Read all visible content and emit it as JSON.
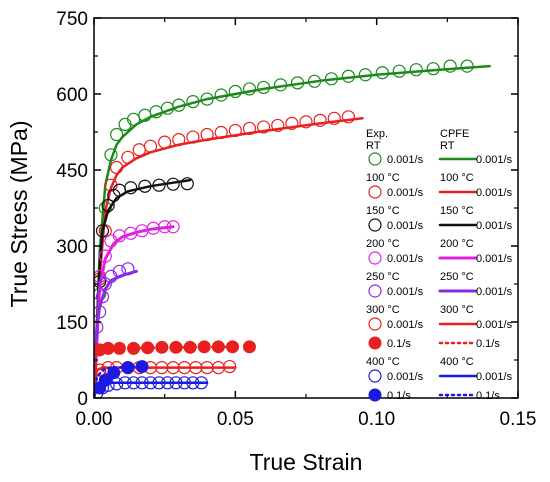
{
  "chart_data": {
    "type": "line",
    "xlabel": "True Strain",
    "ylabel": "True Stress (MPa)",
    "xlim": [
      0,
      0.15
    ],
    "ylim": [
      0,
      750
    ],
    "x_ticks": [
      "0.00",
      "0.05",
      "0.10",
      "0.15"
    ],
    "y_ticks": [
      "0",
      "150",
      "300",
      "450",
      "600",
      "750"
    ],
    "grid": false,
    "legend_position": "right",
    "legend": {
      "header_exp": "Exp.",
      "header_exp_sub": "RT",
      "header_cpfe": "CPFE",
      "header_cpfe_sub": "RT",
      "entries": [
        {
          "group": "",
          "exp_rate": "0.001/s",
          "cpfe_rate": "0.001/s",
          "color": "#1a8a1a",
          "marker": "open",
          "line": "solid",
          "width": 2.5
        },
        {
          "group": "100 °C",
          "exp_rate": "0.001/s",
          "cpfe_rate": "0.001/s",
          "color": "#e82020",
          "marker": "open",
          "line": "solid",
          "width": 2.5
        },
        {
          "group": "150 °C",
          "exp_rate": "0.001/s",
          "cpfe_rate": "0.001/s",
          "color": "#111111",
          "marker": "open",
          "line": "solid",
          "width": 2.5
        },
        {
          "group": "200 °C",
          "exp_rate": "0.001/s",
          "cpfe_rate": "0.001/s",
          "color": "#e020e0",
          "marker": "open",
          "line": "solid",
          "width": 3
        },
        {
          "group": "250 °C",
          "exp_rate": "0.001/s",
          "cpfe_rate": "0.001/s",
          "color": "#8a2be2",
          "marker": "open",
          "line": "solid",
          "width": 3
        },
        {
          "group": "300 °C",
          "exp_rate": "0.001/s",
          "cpfe_rate": "0.001/s",
          "color": "#e82020",
          "marker": "open",
          "line": "solid",
          "width": 2.5
        },
        {
          "group": "",
          "exp_rate": "0.1/s",
          "cpfe_rate": "0.1/s",
          "color": "#e82020",
          "marker": "filled",
          "line": "dotted",
          "width": 2.5
        },
        {
          "group": "400 °C",
          "exp_rate": "0.001/s",
          "cpfe_rate": "0.001/s",
          "color": "#1a1ae0",
          "marker": "open",
          "line": "solid",
          "width": 2.5
        },
        {
          "group": "",
          "exp_rate": "0.1/s",
          "cpfe_rate": "0.1/s",
          "color": "#1a1ae0",
          "marker": "filled",
          "line": "dotted",
          "width": 2.5
        }
      ]
    },
    "series": [
      {
        "color": "#1a8a1a",
        "marker": "open",
        "exp_x": [
          0.002,
          0.004,
          0.006,
          0.008,
          0.011,
          0.014,
          0.018,
          0.022,
          0.026,
          0.03,
          0.035,
          0.04,
          0.045,
          0.05,
          0.055,
          0.06,
          0.066,
          0.072,
          0.078,
          0.084,
          0.09,
          0.096,
          0.102,
          0.108,
          0.114,
          0.12,
          0.126,
          0.132
        ],
        "exp_y": [
          205,
          375,
          480,
          520,
          540,
          550,
          558,
          565,
          572,
          578,
          585,
          590,
          598,
          605,
          610,
          613,
          618,
          622,
          625,
          630,
          635,
          638,
          642,
          645,
          648,
          650,
          655,
          655
        ],
        "model_x": [
          0,
          0.002,
          0.004,
          0.006,
          0.008,
          0.01,
          0.015,
          0.02,
          0.03,
          0.04,
          0.06,
          0.08,
          0.1,
          0.12,
          0.14
        ],
        "model_y": [
          0,
          290,
          420,
          470,
          500,
          515,
          540,
          555,
          575,
          590,
          610,
          626,
          638,
          647,
          655
        ]
      },
      {
        "color": "#e82020",
        "marker": "open",
        "exp_x": [
          0.002,
          0.004,
          0.006,
          0.008,
          0.012,
          0.016,
          0.02,
          0.025,
          0.03,
          0.035,
          0.04,
          0.045,
          0.05,
          0.055,
          0.06,
          0.065,
          0.07,
          0.075,
          0.08,
          0.085,
          0.09
        ],
        "exp_y": [
          235,
          330,
          420,
          455,
          475,
          490,
          497,
          505,
          510,
          515,
          520,
          524,
          528,
          532,
          535,
          538,
          542,
          545,
          548,
          552,
          555
        ],
        "model_x": [
          0,
          0.002,
          0.004,
          0.006,
          0.008,
          0.01,
          0.015,
          0.02,
          0.03,
          0.04,
          0.06,
          0.08,
          0.095
        ],
        "model_y": [
          0,
          240,
          370,
          415,
          440,
          455,
          473,
          485,
          500,
          510,
          527,
          542,
          552
        ]
      },
      {
        "color": "#111111",
        "marker": "open",
        "exp_x": [
          0.002,
          0.003,
          0.005,
          0.007,
          0.009,
          0.013,
          0.018,
          0.023,
          0.028,
          0.033
        ],
        "exp_y": [
          230,
          330,
          380,
          400,
          410,
          415,
          418,
          420,
          422,
          423
        ],
        "model_x": [
          0,
          0.002,
          0.003,
          0.005,
          0.008,
          0.012,
          0.02,
          0.028,
          0.034
        ],
        "model_y": [
          0,
          260,
          330,
          370,
          395,
          408,
          418,
          425,
          430
        ]
      },
      {
        "color": "#e020e0",
        "marker": "open",
        "exp_x": [
          0.002,
          0.004,
          0.006,
          0.009,
          0.013,
          0.017,
          0.021,
          0.025,
          0.028
        ],
        "exp_y": [
          240,
          280,
          310,
          320,
          325,
          330,
          335,
          338,
          338
        ],
        "model_x": [
          0,
          0.002,
          0.004,
          0.007,
          0.01,
          0.015,
          0.02,
          0.028
        ],
        "model_y": [
          0,
          220,
          275,
          305,
          318,
          327,
          333,
          338
        ]
      },
      {
        "color": "#8a2be2",
        "marker": "open",
        "exp_x": [
          0.001,
          0.002,
          0.003,
          0.004,
          0.006,
          0.009,
          0.012
        ],
        "exp_y": [
          140,
          170,
          200,
          225,
          240,
          250,
          255
        ],
        "model_x": [
          0,
          0.001,
          0.002,
          0.004,
          0.006,
          0.01,
          0.015
        ],
        "model_y": [
          0,
          140,
          180,
          215,
          232,
          242,
          250
        ]
      },
      {
        "color": "#e82020",
        "marker": "open",
        "exp_x": [
          0.002,
          0.005,
          0.008,
          0.012,
          0.016,
          0.02,
          0.024,
          0.028,
          0.032,
          0.036,
          0.04,
          0.044,
          0.048
        ],
        "exp_y": [
          55,
          60,
          60,
          60,
          60,
          60,
          60,
          60,
          60,
          60,
          60,
          60,
          62
        ],
        "model_x": [
          0,
          0.001,
          0.003,
          0.006,
          0.05
        ],
        "model_y": [
          0,
          55,
          60,
          60,
          60
        ]
      },
      {
        "color": "#e82020",
        "marker": "filled",
        "exp_x": [
          0.002,
          0.005,
          0.009,
          0.014,
          0.019,
          0.024,
          0.029,
          0.034,
          0.039,
          0.044,
          0.049,
          0.055
        ],
        "exp_y": [
          95,
          98,
          98,
          98,
          99,
          100,
          100,
          100,
          101,
          101,
          101,
          101
        ],
        "model_x": [
          0,
          0.001,
          0.003,
          0.006,
          0.05
        ],
        "model_y": [
          0,
          90,
          97,
          98,
          101
        ]
      },
      {
        "color": "#1a1ae0",
        "marker": "open",
        "exp_x": [
          0.001,
          0.003,
          0.005,
          0.008,
          0.011,
          0.014,
          0.017,
          0.02,
          0.023,
          0.026,
          0.029,
          0.032,
          0.035,
          0.038
        ],
        "exp_y": [
          10,
          20,
          25,
          28,
          30,
          30,
          30,
          30,
          30,
          30,
          30,
          30,
          30,
          30
        ],
        "model_x": [
          0,
          0.001,
          0.003,
          0.005,
          0.04
        ],
        "model_y": [
          0,
          22,
          28,
          30,
          30
        ]
      },
      {
        "color": "#1a1ae0",
        "marker": "filled",
        "exp_x": [
          0.002,
          0.004,
          0.007,
          0.012,
          0.017
        ],
        "exp_y": [
          20,
          35,
          50,
          60,
          62
        ],
        "model_x": [
          0,
          0.001,
          0.003,
          0.006,
          0.015
        ],
        "model_y": [
          0,
          40,
          55,
          60,
          62
        ]
      }
    ]
  }
}
